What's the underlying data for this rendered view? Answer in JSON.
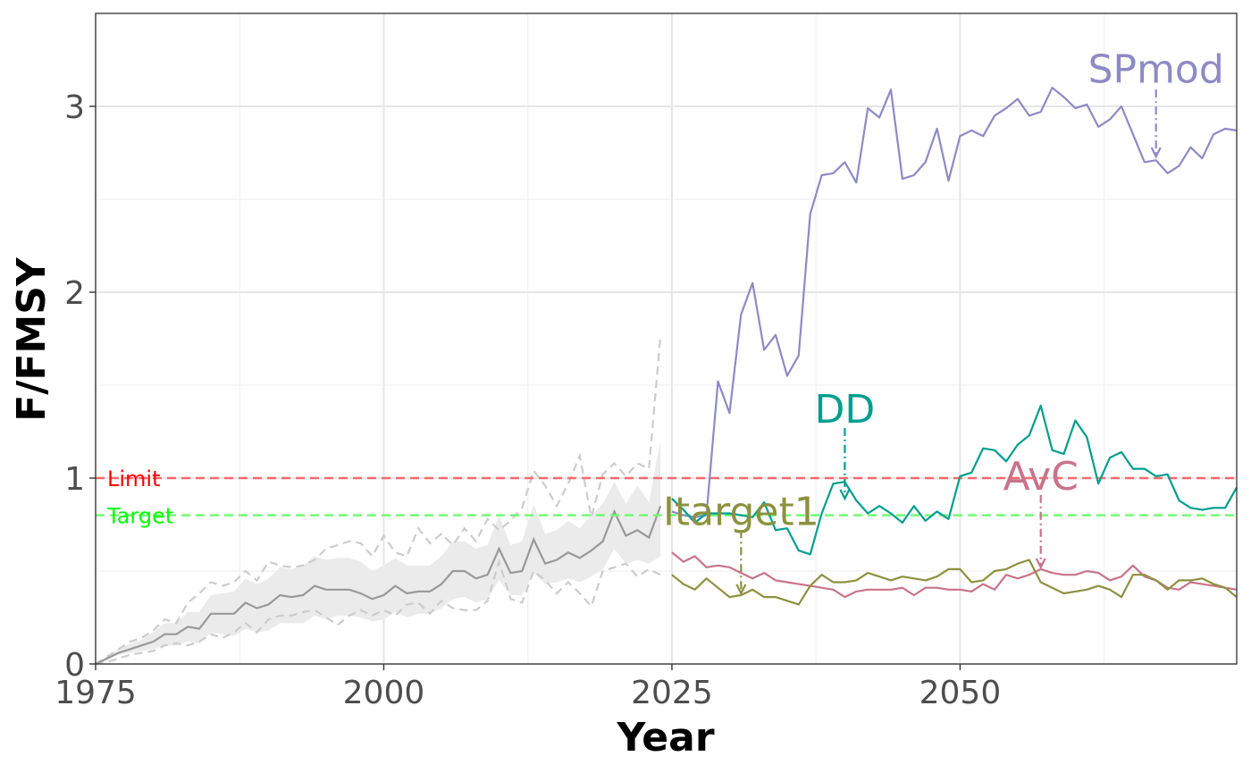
{
  "chart_data": {
    "type": "line",
    "xlabel": "Year",
    "ylabel": "F/FMSY",
    "xlim": [
      1975,
      2074
    ],
    "ylim": [
      0,
      3.5
    ],
    "x_ticks": [
      1975,
      2000,
      2025,
      2050
    ],
    "x_tick_labels": [
      "1975",
      "2000",
      "2025",
      "2050"
    ],
    "y_ticks": [
      0,
      1,
      2,
      3
    ],
    "y_tick_labels": [
      "0",
      "1",
      "2",
      "3"
    ],
    "grid": true,
    "reference_lines": [
      {
        "label": "Limit",
        "value": 1.0,
        "color": "#f8696b"
      },
      {
        "label": "Target",
        "value": 0.8,
        "color": "#6bfd6b"
      }
    ],
    "historical": {
      "x": [
        1975,
        1976,
        1977,
        1978,
        1979,
        1980,
        1981,
        1982,
        1983,
        1984,
        1985,
        1986,
        1987,
        1988,
        1989,
        1990,
        1991,
        1992,
        1993,
        1994,
        1995,
        1996,
        1997,
        1998,
        1999,
        2000,
        2001,
        2002,
        2003,
        2004,
        2005,
        2006,
        2007,
        2008,
        2009,
        2010,
        2011,
        2012,
        2013,
        2014,
        2015,
        2016,
        2017,
        2018,
        2019,
        2020,
        2021,
        2022,
        2023,
        2024
      ],
      "median": [
        0.0,
        0.03,
        0.06,
        0.08,
        0.1,
        0.12,
        0.16,
        0.16,
        0.2,
        0.19,
        0.27,
        0.27,
        0.27,
        0.33,
        0.3,
        0.32,
        0.37,
        0.36,
        0.37,
        0.42,
        0.4,
        0.4,
        0.4,
        0.38,
        0.35,
        0.37,
        0.42,
        0.38,
        0.39,
        0.39,
        0.43,
        0.5,
        0.5,
        0.46,
        0.48,
        0.62,
        0.49,
        0.5,
        0.67,
        0.54,
        0.56,
        0.6,
        0.57,
        0.61,
        0.66,
        0.82,
        0.69,
        0.72,
        0.68,
        0.85
      ],
      "lower": [
        0.0,
        0.02,
        0.05,
        0.06,
        0.07,
        0.08,
        0.1,
        0.1,
        0.12,
        0.11,
        0.17,
        0.16,
        0.15,
        0.19,
        0.17,
        0.18,
        0.22,
        0.22,
        0.22,
        0.26,
        0.24,
        0.26,
        0.26,
        0.25,
        0.23,
        0.24,
        0.28,
        0.25,
        0.27,
        0.27,
        0.3,
        0.35,
        0.36,
        0.33,
        0.35,
        0.45,
        0.37,
        0.37,
        0.49,
        0.43,
        0.44,
        0.46,
        0.44,
        0.47,
        0.51,
        0.62,
        0.54,
        0.56,
        0.54,
        0.58
      ],
      "upper": [
        0.0,
        0.04,
        0.08,
        0.11,
        0.13,
        0.17,
        0.22,
        0.22,
        0.28,
        0.28,
        0.37,
        0.38,
        0.39,
        0.46,
        0.43,
        0.46,
        0.52,
        0.51,
        0.53,
        0.58,
        0.56,
        0.57,
        0.57,
        0.55,
        0.5,
        0.53,
        0.57,
        0.53,
        0.53,
        0.53,
        0.58,
        0.66,
        0.66,
        0.62,
        0.64,
        0.8,
        0.64,
        0.66,
        0.86,
        0.7,
        0.72,
        0.77,
        0.73,
        0.8,
        0.86,
        0.98,
        0.86,
        0.96,
        0.87,
        1.2
      ],
      "p_low": [
        0.0,
        0.01,
        0.03,
        0.05,
        0.06,
        0.07,
        0.1,
        0.11,
        0.1,
        0.12,
        0.16,
        0.14,
        0.17,
        0.22,
        0.17,
        0.24,
        0.26,
        0.26,
        0.28,
        0.29,
        0.25,
        0.21,
        0.26,
        0.29,
        0.26,
        0.29,
        0.26,
        0.32,
        0.33,
        0.27,
        0.34,
        0.3,
        0.29,
        0.29,
        0.34,
        0.55,
        0.35,
        0.33,
        0.5,
        0.45,
        0.38,
        0.44,
        0.38,
        0.31,
        0.5,
        0.52,
        0.54,
        0.47,
        0.51,
        0.48
      ],
      "p_high": [
        0.0,
        0.04,
        0.08,
        0.12,
        0.14,
        0.18,
        0.24,
        0.22,
        0.33,
        0.38,
        0.44,
        0.42,
        0.44,
        0.5,
        0.45,
        0.55,
        0.53,
        0.52,
        0.53,
        0.56,
        0.62,
        0.64,
        0.66,
        0.65,
        0.58,
        0.69,
        0.6,
        0.58,
        0.73,
        0.65,
        0.7,
        0.64,
        0.73,
        0.66,
        0.78,
        0.72,
        0.77,
        0.84,
        1.04,
        0.96,
        0.85,
        0.97,
        1.12,
        0.79,
        1.02,
        1.08,
        1.01,
        1.08,
        1.05,
        1.76
      ]
    },
    "series": [
      {
        "name": "SPmod",
        "color": "#8d8ac5",
        "x": [
          2025,
          2026,
          2027,
          2028,
          2029,
          2030,
          2031,
          2032,
          2033,
          2034,
          2035,
          2036,
          2037,
          2038,
          2039,
          2040,
          2041,
          2042,
          2043,
          2044,
          2045,
          2046,
          2047,
          2048,
          2049,
          2050,
          2051,
          2052,
          2053,
          2054,
          2055,
          2056,
          2057,
          2058,
          2059,
          2060,
          2061,
          2062,
          2063,
          2064,
          2065,
          2066,
          2067,
          2068,
          2069,
          2070,
          2071,
          2072,
          2073,
          2074
        ],
        "values": [
          0.82,
          0.8,
          0.79,
          0.8,
          1.52,
          1.35,
          1.88,
          2.05,
          1.69,
          1.77,
          1.55,
          1.66,
          2.42,
          2.63,
          2.64,
          2.7,
          2.59,
          2.99,
          2.94,
          3.09,
          2.61,
          2.63,
          2.7,
          2.88,
          2.6,
          2.84,
          2.87,
          2.84,
          2.95,
          2.99,
          3.04,
          2.95,
          2.97,
          3.1,
          3.05,
          2.99,
          3.01,
          2.89,
          2.93,
          3.0,
          2.85,
          2.7,
          2.71,
          2.64,
          2.68,
          2.78,
          2.72,
          2.85,
          2.88,
          2.87
        ]
      },
      {
        "name": "DD",
        "color": "#009e8f",
        "x": [
          2025,
          2026,
          2027,
          2028,
          2029,
          2030,
          2031,
          2032,
          2033,
          2034,
          2035,
          2036,
          2037,
          2038,
          2039,
          2040,
          2041,
          2042,
          2043,
          2044,
          2045,
          2046,
          2047,
          2048,
          2049,
          2050,
          2051,
          2052,
          2053,
          2054,
          2055,
          2056,
          2057,
          2058,
          2059,
          2060,
          2061,
          2062,
          2063,
          2064,
          2065,
          2066,
          2067,
          2068,
          2069,
          2070,
          2071,
          2072,
          2073,
          2074
        ],
        "values": [
          0.89,
          0.83,
          0.76,
          0.81,
          0.81,
          0.81,
          0.8,
          0.79,
          0.87,
          0.72,
          0.73,
          0.61,
          0.59,
          0.81,
          0.97,
          0.98,
          0.88,
          0.81,
          0.85,
          0.81,
          0.76,
          0.85,
          0.77,
          0.82,
          0.78,
          1.01,
          1.03,
          1.16,
          1.15,
          1.09,
          1.18,
          1.23,
          1.39,
          1.15,
          1.13,
          1.31,
          1.22,
          0.97,
          1.11,
          1.14,
          1.05,
          1.05,
          1.01,
          1.02,
          0.88,
          0.84,
          0.83,
          0.84,
          0.84,
          0.95
        ]
      },
      {
        "name": "AvC",
        "color": "#c9738a",
        "x": [
          2025,
          2026,
          2027,
          2028,
          2029,
          2030,
          2031,
          2032,
          2033,
          2034,
          2035,
          2036,
          2037,
          2038,
          2039,
          2040,
          2041,
          2042,
          2043,
          2044,
          2045,
          2046,
          2047,
          2048,
          2049,
          2050,
          2051,
          2052,
          2053,
          2054,
          2055,
          2056,
          2057,
          2058,
          2059,
          2060,
          2061,
          2062,
          2063,
          2064,
          2065,
          2066,
          2067,
          2068,
          2069,
          2070,
          2071,
          2072,
          2073,
          2074
        ],
        "values": [
          0.6,
          0.55,
          0.58,
          0.52,
          0.53,
          0.52,
          0.49,
          0.46,
          0.49,
          0.45,
          0.44,
          0.43,
          0.42,
          0.41,
          0.4,
          0.36,
          0.39,
          0.4,
          0.4,
          0.4,
          0.41,
          0.37,
          0.41,
          0.41,
          0.4,
          0.4,
          0.39,
          0.43,
          0.4,
          0.48,
          0.46,
          0.48,
          0.51,
          0.49,
          0.48,
          0.48,
          0.5,
          0.49,
          0.45,
          0.47,
          0.53,
          0.47,
          0.45,
          0.41,
          0.4,
          0.44,
          0.43,
          0.42,
          0.41,
          0.4
        ]
      },
      {
        "name": "Itarget1",
        "color": "#8d9140",
        "x": [
          2025,
          2026,
          2027,
          2028,
          2029,
          2030,
          2031,
          2032,
          2033,
          2034,
          2035,
          2036,
          2037,
          2038,
          2039,
          2040,
          2041,
          2042,
          2043,
          2044,
          2045,
          2046,
          2047,
          2048,
          2049,
          2050,
          2051,
          2052,
          2053,
          2054,
          2055,
          2056,
          2057,
          2058,
          2059,
          2060,
          2061,
          2062,
          2063,
          2064,
          2065,
          2066,
          2067,
          2068,
          2069,
          2070,
          2071,
          2072,
          2073,
          2074
        ],
        "values": [
          0.48,
          0.43,
          0.4,
          0.46,
          0.41,
          0.36,
          0.37,
          0.4,
          0.36,
          0.36,
          0.34,
          0.32,
          0.42,
          0.48,
          0.44,
          0.44,
          0.45,
          0.49,
          0.47,
          0.45,
          0.47,
          0.46,
          0.45,
          0.47,
          0.51,
          0.51,
          0.44,
          0.45,
          0.5,
          0.51,
          0.54,
          0.56,
          0.44,
          0.41,
          0.38,
          0.39,
          0.4,
          0.42,
          0.4,
          0.36,
          0.48,
          0.48,
          0.45,
          0.4,
          0.45,
          0.45,
          0.46,
          0.43,
          0.41,
          0.36
        ]
      }
    ],
    "annotations": [
      {
        "text": "SPmod",
        "series": "SPmod",
        "x": 2067,
        "label_y": 3.2,
        "arrow_from": 3.09,
        "arrow_to": 2.73
      },
      {
        "text": "DD",
        "series": "DD",
        "x": 2040,
        "label_y": 1.37,
        "arrow_from": 1.27,
        "arrow_to": 0.89
      },
      {
        "text": "AvC",
        "series": "AvC",
        "x": 2057,
        "label_y": 1.01,
        "arrow_from": 0.91,
        "arrow_to": 0.52
      },
      {
        "text": "Itarget1",
        "series": "Itarget1",
        "x": 2031,
        "label_y": 0.82,
        "arrow_from": 0.72,
        "arrow_to": 0.38
      }
    ]
  }
}
